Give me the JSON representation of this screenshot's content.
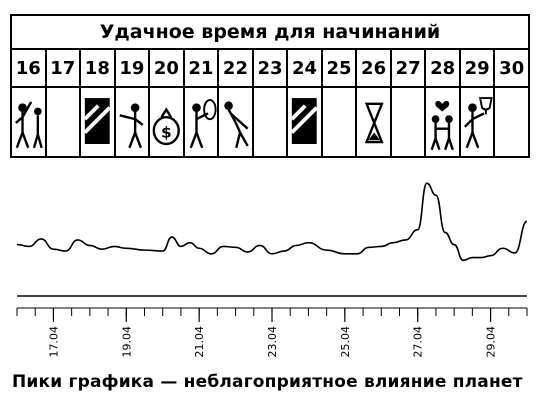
{
  "calendar": {
    "title": "Удачное время для начинаний",
    "days": [
      "16",
      "17",
      "18",
      "19",
      "20",
      "21",
      "22",
      "23",
      "24",
      "25",
      "26",
      "27",
      "28",
      "29",
      "30"
    ],
    "cells": [
      {
        "icon": "cheering-people-icon"
      },
      {
        "icon": "empty"
      },
      {
        "icon": "hatched-block-icon"
      },
      {
        "icon": "person-pointing-icon"
      },
      {
        "icon": "money-bag-icon"
      },
      {
        "icon": "person-with-instrument-icon"
      },
      {
        "icon": "person-stretching-icon"
      },
      {
        "icon": "empty"
      },
      {
        "icon": "hatched-block-icon"
      },
      {
        "icon": "empty"
      },
      {
        "icon": "hourglass-people-icon"
      },
      {
        "icon": "empty"
      },
      {
        "icon": "couple-heart-icon"
      },
      {
        "icon": "trophy-person-icon"
      },
      {
        "icon": "empty"
      }
    ]
  },
  "chart_data": {
    "type": "line",
    "title": "",
    "xlabel": "",
    "ylabel": "",
    "x_ticks": [
      "17.04",
      "19.04",
      "21.04",
      "23.04",
      "25.04",
      "27.04",
      "29.04"
    ],
    "xlim": [
      "2016-04-16",
      "2016-04-30"
    ],
    "ylim": [
      0,
      1
    ],
    "grid": false,
    "series": [
      {
        "x": [
          "2016-04-16",
          "2016-04-16 08:00",
          "2016-04-16 16:00",
          "2016-04-17",
          "2016-04-17 08:00",
          "2016-04-17 16:00",
          "2016-04-18",
          "2016-04-18 08:00",
          "2016-04-18 16:00",
          "2016-04-19",
          "2016-04-19 12:00",
          "2016-04-20",
          "2016-04-20 06:00",
          "2016-04-20 12:00",
          "2016-04-20 18:00",
          "2016-04-21",
          "2016-04-21 08:00",
          "2016-04-21 16:00",
          "2016-04-22",
          "2016-04-22 08:00",
          "2016-04-22 16:00",
          "2016-04-23",
          "2016-04-23 08:00",
          "2016-04-23 16:00",
          "2016-04-24",
          "2016-04-24 12:00",
          "2016-04-25",
          "2016-04-25 08:00",
          "2016-04-25 16:00",
          "2016-04-26",
          "2016-04-26 08:00",
          "2016-04-26 16:00",
          "2016-04-27",
          "2016-04-27 06:00",
          "2016-04-27 12:00",
          "2016-04-27 18:00",
          "2016-04-28",
          "2016-04-28 06:00",
          "2016-04-28 12:00",
          "2016-04-28 18:00",
          "2016-04-29",
          "2016-04-29 08:00",
          "2016-04-29 16:00",
          "2016-04-30"
        ],
        "y": [
          0.22,
          0.2,
          0.28,
          0.17,
          0.15,
          0.27,
          0.21,
          0.17,
          0.2,
          0.18,
          0.16,
          0.15,
          0.3,
          0.2,
          0.24,
          0.18,
          0.12,
          0.2,
          0.19,
          0.14,
          0.21,
          0.12,
          0.15,
          0.21,
          0.24,
          0.16,
          0.12,
          0.12,
          0.19,
          0.2,
          0.24,
          0.27,
          0.38,
          0.88,
          0.75,
          0.35,
          0.22,
          0.05,
          0.08,
          0.08,
          0.1,
          0.18,
          0.13,
          0.47
        ]
      }
    ]
  },
  "caption": "Пики графика — неблагоприятное влияние планет"
}
